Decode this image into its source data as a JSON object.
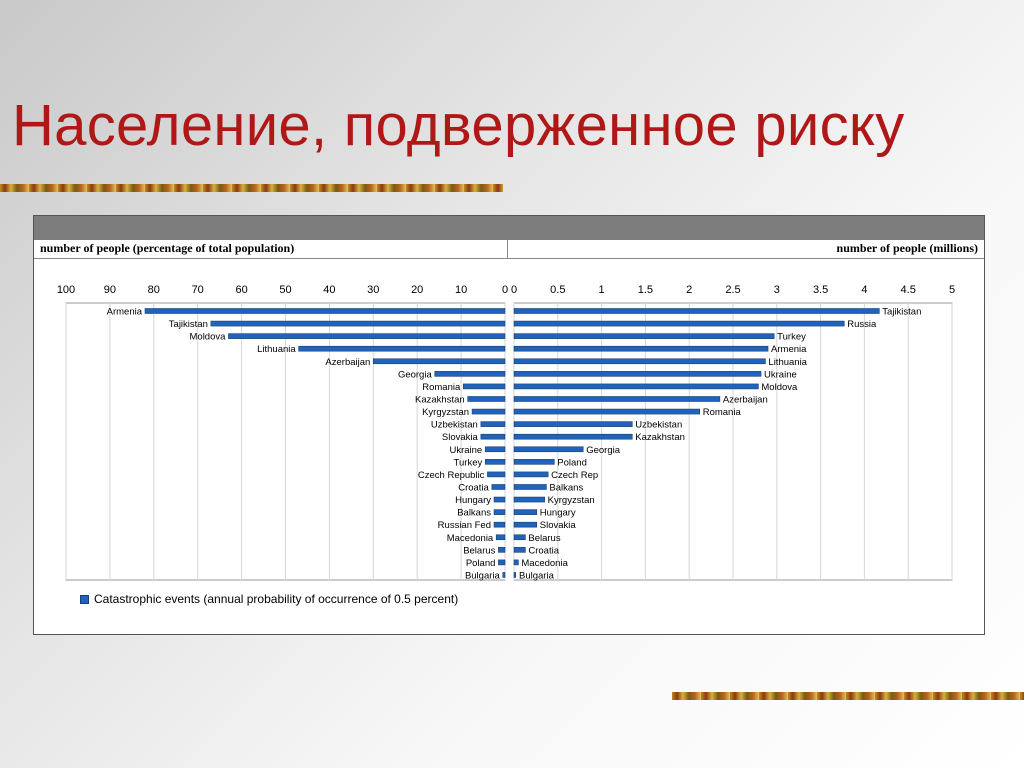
{
  "title": "Население, подверженное риску",
  "panel": {
    "left_header": "number of people (percentage of total population)",
    "right_header": "number of people (millions)"
  },
  "colors": {
    "bar": "#1f64b8",
    "bar_stroke": "#1a3f78",
    "title": "#b01818"
  },
  "chart_data": [
    {
      "type": "bar",
      "orientation": "horizontal",
      "x_direction": "reversed",
      "title": "",
      "xlabel": "number of people (percentage of total population)",
      "xlim": [
        0,
        100
      ],
      "ticks": [
        100,
        90,
        80,
        70,
        60,
        50,
        40,
        30,
        20,
        10,
        0
      ],
      "grid": true,
      "categories": [
        "Armenia",
        "Tajikistan",
        "Moldova",
        "Lithuania",
        "Azerbaijan",
        "Georgia",
        "Romania",
        "Kazakhstan",
        "Kyrgyzstan",
        "Uzbekistan",
        "Slovakia",
        "Ukraine",
        "Turkey",
        "Czech Republic",
        "Croatia",
        "Hungary",
        "Balkans",
        "Russian Fed",
        "Macedonia",
        "Belarus",
        "Poland",
        "Bulgaria"
      ],
      "series": [
        {
          "name": "Catastrophic events (annual probability of occurrence of 0.5 percent)",
          "values": [
            82,
            67,
            63,
            47,
            30,
            16,
            9.5,
            8.5,
            7.5,
            5.5,
            5.5,
            4.5,
            4.5,
            4,
            3,
            2.5,
            2.5,
            2.5,
            2,
            1.5,
            1.5,
            0.5
          ]
        }
      ]
    },
    {
      "type": "bar",
      "orientation": "horizontal",
      "title": "",
      "xlabel": "number of people (millions)",
      "xlim": [
        0,
        5
      ],
      "ticks": [
        0,
        0.5,
        1,
        1.5,
        2,
        2.5,
        3,
        3.5,
        4,
        4.5,
        5
      ],
      "grid": true,
      "categories": [
        "Tajikistan",
        "Russia",
        "Turkey",
        "Armenia",
        "Lithuania",
        "Ukraine",
        "Moldova",
        "Azerbaijan",
        "Romania",
        "Uzbekistan",
        "Kazakhstan",
        "Georgia",
        "Poland",
        "Czech Rep",
        "Balkans",
        "Kyrgyzstan",
        "Hungary",
        "Slovakia",
        "Belarus",
        "Croatia",
        "Macedonia",
        "Bulgaria"
      ],
      "series": [
        {
          "name": "Catastrophic events (annual probability of occurrence of 0.5 percent)",
          "values": [
            4.17,
            3.77,
            2.97,
            2.9,
            2.87,
            2.82,
            2.79,
            2.35,
            2.12,
            1.35,
            1.35,
            0.79,
            0.46,
            0.39,
            0.37,
            0.35,
            0.26,
            0.26,
            0.13,
            0.13,
            0.05,
            0.02
          ]
        }
      ]
    }
  ],
  "legend": {
    "label": "Catastrophic events (annual probability of occurrence of 0.5 percent)"
  }
}
